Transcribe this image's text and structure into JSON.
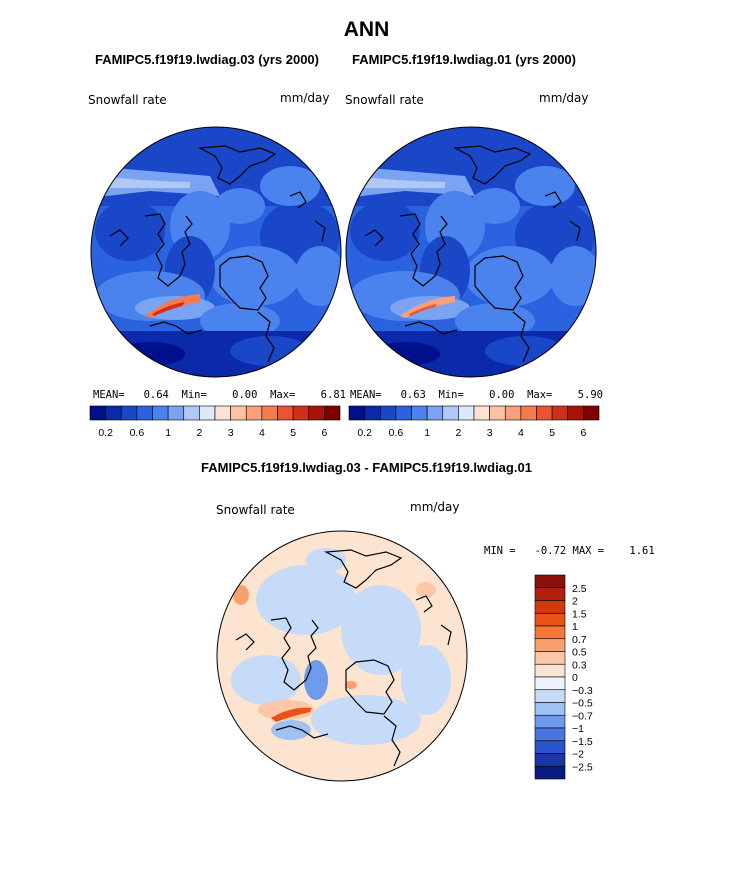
{
  "title": "ANN",
  "left_case": "FAMIPC5.f19f19.lwdiag.03 (yrs 2000)",
  "right_case": "FAMIPC5.f19f19.lwdiag.01 (yrs 2000)",
  "diff_title": "FAMIPC5.f19f19.lwdiag.03 - FAMIPC5.f19f19.lwdiag.01",
  "colors": {
    "abs_scale": [
      "#000f8c",
      "#0a2aaa",
      "#1a46c8",
      "#2b62e0",
      "#4a82ee",
      "#7aa4f2",
      "#b0c8f6",
      "#dde8fb",
      "#fde2d2",
      "#fbc2a4",
      "#f8a07c",
      "#f47a50",
      "#ec5430",
      "#d0301a",
      "#a81208",
      "#820000"
    ],
    "diff_scale": [
      "#8a0f0a",
      "#b2200e",
      "#d4380e",
      "#ea5216",
      "#f5783a",
      "#f9a070",
      "#fcc7a6",
      "#fde4d0",
      "#eef3fb",
      "#c6dbf7",
      "#9fc2f2",
      "#6f9cea",
      "#4a76e2",
      "#2c52cc",
      "#1a35a8",
      "#0b1a80"
    ]
  },
  "maps": [
    {
      "label": "Snowfall rate",
      "units": "mm/day",
      "stats": {
        "mean_label": "MEAN=",
        "mean": "0.64",
        "min_label": "Min=",
        "min": "0.00",
        "max_label": "Max=",
        "max": "6.81"
      },
      "ticks": [
        "0.2",
        "0.6",
        "1",
        "2",
        "3",
        "4",
        "5",
        "6"
      ]
    },
    {
      "label": "Snowfall rate",
      "units": "mm/day",
      "stats": {
        "mean_label": "MEAN=",
        "mean": "0.63",
        "min_label": "Min=",
        "min": "0.00",
        "max_label": "Max=",
        "max": "5.90"
      },
      "ticks": [
        "0.2",
        "0.6",
        "1",
        "2",
        "3",
        "4",
        "5",
        "6"
      ]
    }
  ],
  "diff_map": {
    "label": "Snowfall rate",
    "units": "mm/day",
    "minmax": "MIN =   -0.72 MAX =    1.61",
    "ticks": [
      "2.5",
      "2",
      "1.5",
      "1",
      "0.7",
      "0.5",
      "0.3",
      "0",
      "−0.3",
      "−0.5",
      "−0.7",
      "−1",
      "−1.5",
      "−2",
      "−2.5"
    ]
  }
}
